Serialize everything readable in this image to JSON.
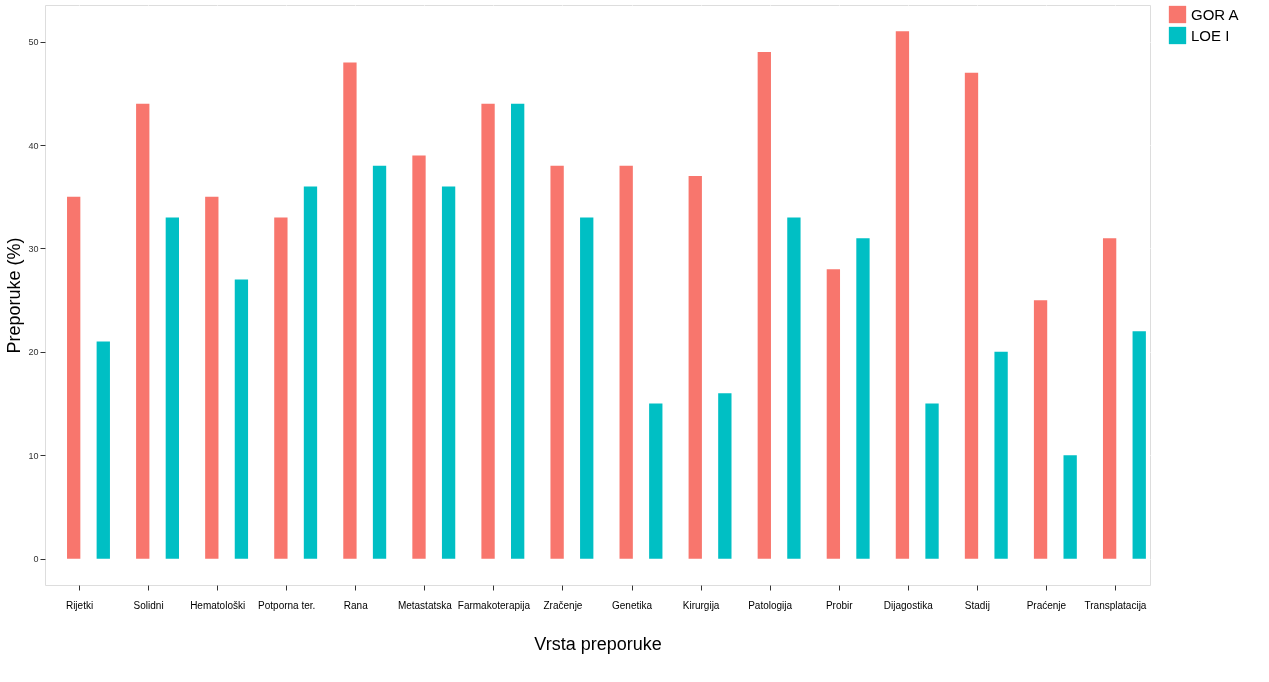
{
  "chart_data": {
    "type": "bar",
    "xlabel": "Vrsta preporuke",
    "ylabel": "Preporuke (%)",
    "categories": [
      "Rijetki",
      "Solidni",
      "Hematološki",
      "Potporna ter.",
      "Rana",
      "Metastatska",
      "Farmakoterapija",
      "Zračenje",
      "Genetika",
      "Kirurgija",
      "Patologija",
      "Probir",
      "Dijagostika",
      "Stadij",
      "Praćenje",
      "Transplatacija"
    ],
    "series": [
      {
        "name": "GOR A",
        "color": "#f8766d",
        "values": [
          35,
          44,
          35,
          33,
          48,
          39,
          44,
          38,
          38,
          37,
          49,
          28,
          51,
          47,
          25,
          31
        ]
      },
      {
        "name": "LOE I",
        "color": "#00bfc4",
        "values": [
          21,
          33,
          27,
          36,
          38,
          36,
          44,
          33,
          15,
          16,
          33,
          31,
          15,
          20,
          10,
          22
        ]
      }
    ],
    "ylim": [
      -2.55,
      53.55
    ],
    "yticks": [
      0,
      10,
      20,
      30,
      40,
      50
    ],
    "grid": true,
    "legend": "right"
  }
}
